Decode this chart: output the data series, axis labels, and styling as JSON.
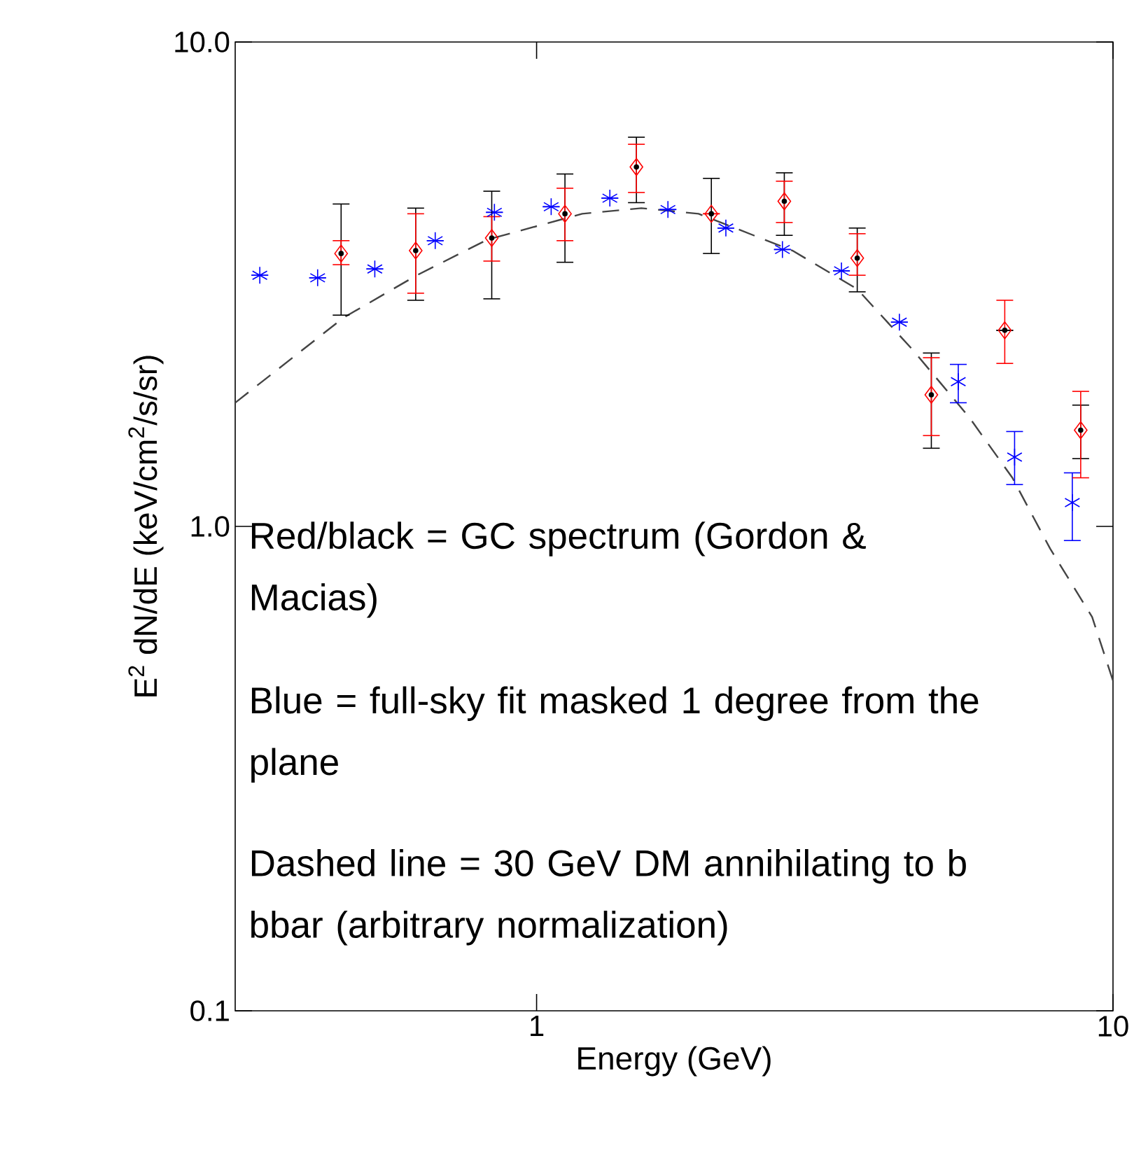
{
  "chart_data": {
    "type": "scatter",
    "xlabel": "Energy (GeV)",
    "ylabel": "E$^{2}$ dN/dE (keV/cm$^{2}$/s/sr)",
    "log": "xy",
    "xlim": [
      0.3,
      10
    ],
    "ylim": [
      0.1,
      10
    ],
    "xticks": [
      1,
      10
    ],
    "yticks": [
      {
        "value": 0.1,
        "label": "0.1"
      },
      {
        "value": 1,
        "label": "1.0"
      },
      {
        "value": 10,
        "label": "10.0"
      }
    ],
    "grid": false,
    "series": [
      {
        "type": "line",
        "color": "#444444",
        "line_style": "dashed",
        "marker": "none",
        "x": [
          0.3,
          0.463,
          0.62,
          0.822,
          1.2,
          1.52,
          1.91,
          2.78,
          3.6,
          4.5,
          5.63,
          6.69,
          7.78,
          9.2,
          10
        ],
        "values": [
          1.8,
          2.7,
          3.3,
          3.91,
          4.42,
          4.54,
          4.42,
          3.71,
          3.09,
          2.31,
          1.68,
          1.26,
          0.9,
          0.65,
          0.48
        ]
      },
      {
        "color": "#0000ff",
        "marker": "cross",
        "x": [
          0.331,
          0.417,
          0.524,
          0.667,
          0.845,
          1.06,
          1.34,
          1.69,
          2.13,
          2.67,
          3.38,
          4.26,
          5.39,
          6.75,
          8.5
        ],
        "values": [
          3.3,
          3.26,
          3.4,
          3.89,
          4.45,
          4.57,
          4.76,
          4.51,
          4.13,
          3.73,
          3.37,
          2.64,
          1.99,
          1.39,
          1.12
        ],
        "errors": [
          null,
          null,
          null,
          null,
          null,
          null,
          null,
          null,
          null,
          null,
          null,
          null,
          [
            1.8,
            2.16
          ],
          [
            1.22,
            1.57
          ],
          [
            0.935,
            1.29
          ]
        ]
      },
      {
        "color": "#000000",
        "marker": "circle",
        "x": [
          0.458,
          0.617,
          0.836,
          1.12,
          1.49,
          2.01,
          2.69,
          3.6,
          4.84,
          6.49,
          8.79
        ],
        "values": [
          3.66,
          3.71,
          3.94,
          4.42,
          5.52,
          4.42,
          4.69,
          3.58,
          1.87,
          2.54,
          1.58
        ],
        "errors": [
          [
            2.73,
            4.63
          ],
          [
            2.93,
            4.54
          ],
          [
            2.95,
            4.92
          ],
          [
            3.51,
            5.34
          ],
          [
            4.66,
            6.36
          ],
          [
            3.66,
            5.23
          ],
          [
            3.99,
            5.37
          ],
          [
            3.05,
            4.13
          ],
          [
            1.45,
            2.28
          ],
          null,
          [
            1.38,
            1.78
          ]
        ]
      },
      {
        "color": "#ff0000",
        "marker": "diamond",
        "x": [
          0.458,
          0.617,
          0.836,
          1.12,
          1.49,
          2.01,
          2.69,
          3.6,
          4.84,
          6.49,
          8.79
        ],
        "values": [
          3.66,
          3.71,
          3.94,
          4.42,
          5.52,
          4.42,
          4.69,
          3.58,
          1.87,
          2.54,
          1.58
        ],
        "errors": [
          [
            3.47,
            3.89
          ],
          [
            3.03,
            4.42
          ],
          [
            3.53,
            4.36
          ],
          [
            3.89,
            4.99
          ],
          [
            4.89,
            6.15
          ],
          null,
          [
            4.24,
            5.16
          ],
          [
            3.3,
            4.02
          ],
          [
            1.54,
            2.23
          ],
          [
            2.17,
            2.93
          ],
          [
            1.26,
            1.9
          ]
        ]
      }
    ],
    "annotations": [
      "Red/black = GC spectrum (Gordon & Macias)",
      "Blue = full-sky fit masked 1 degree from the plane",
      "Dashed line = 30 GeV DM annihilating to b bbar (arbitrary normalization)"
    ]
  }
}
